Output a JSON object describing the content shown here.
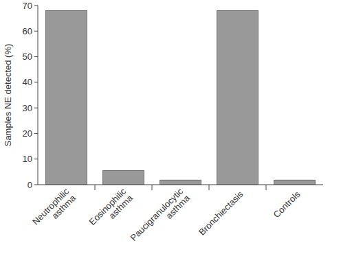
{
  "chart_data": {
    "type": "bar",
    "y_label": "Samples NE detected (%)",
    "categories": [
      "Neutrophilic asthma",
      "Eosinophilic asthma",
      "Paucigranulocytic asthma",
      "Bronchiectasis",
      "Controls"
    ],
    "values": [
      68,
      5.5,
      1.8,
      68,
      1.8
    ],
    "color": "#999999",
    "ylim": [
      0,
      70
    ],
    "yticks": [
      0,
      10,
      20,
      30,
      40,
      50,
      60,
      70
    ],
    "grid": false
  }
}
